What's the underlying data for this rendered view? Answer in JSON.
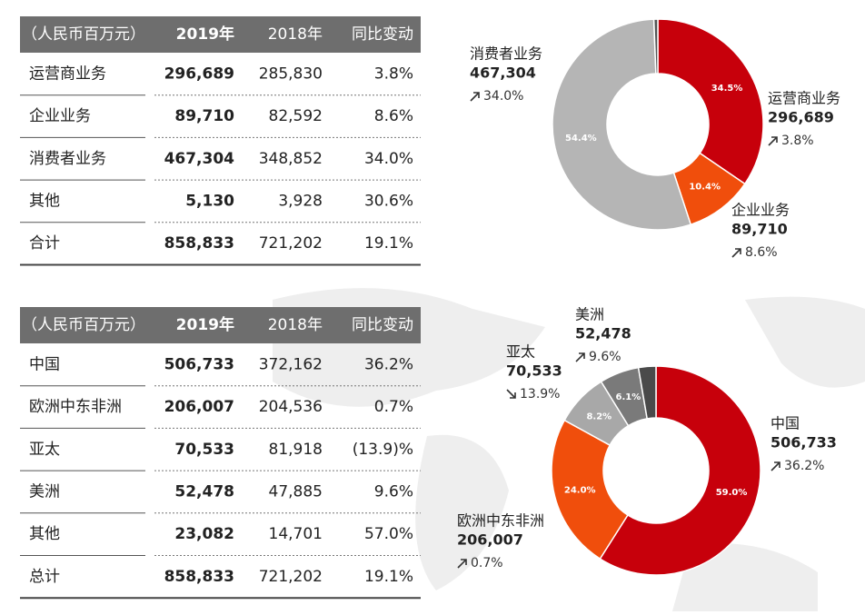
{
  "table1": {
    "header": [
      "（人民币百万元）",
      "2019年",
      "2018年",
      "同比变动"
    ],
    "rows": [
      [
        "运营商业务",
        "296,689",
        "285,830",
        "3.8%"
      ],
      [
        "企业业务",
        "89,710",
        "82,592",
        "8.6%"
      ],
      [
        "消费者业务",
        "467,304",
        "348,852",
        "34.0%"
      ],
      [
        "其他",
        "5,130",
        "3,928",
        "30.6%"
      ],
      [
        "合计",
        "858,833",
        "721,202",
        "19.1%"
      ]
    ]
  },
  "table2": {
    "header": [
      "（人民币百万元）",
      "2019年",
      "2018年",
      "同比变动"
    ],
    "rows": [
      [
        "中国",
        "506,733",
        "372,162",
        "36.2%"
      ],
      [
        "欧洲中东非洲",
        "206,007",
        "204,536",
        "0.7%"
      ],
      [
        "亚太",
        "70,533",
        "81,918",
        "(13.9)%"
      ],
      [
        "美洲",
        "52,478",
        "47,885",
        "9.6%"
      ],
      [
        "其他",
        "23,082",
        "14,701",
        "57.0%"
      ],
      [
        "总计",
        "858,833",
        "721,202",
        "19.1%"
      ]
    ]
  },
  "donut1": {
    "type": "donut",
    "categories": [
      "运营商业务",
      "企业业务",
      "消费者业务",
      null
    ],
    "values": [
      34.5,
      10.4,
      54.4,
      0.6
    ],
    "value_labels": [
      "34.5%",
      "10.4%",
      "54.4%",
      null
    ],
    "amounts": [
      "296,689",
      "89,710",
      "467,304",
      null
    ],
    "changes": [
      "3.8%",
      "8.6%",
      "34.0%",
      null
    ],
    "trends": [
      "up",
      "up",
      "up",
      null
    ],
    "colors": [
      "#c7000b",
      "#f04e0c",
      "#b5b5b5",
      "#555555"
    ]
  },
  "donut2": {
    "type": "donut",
    "categories": [
      "中国",
      "欧洲中东非洲",
      "亚太",
      "美洲",
      null
    ],
    "values": [
      59.0,
      24.0,
      8.2,
      6.1,
      2.7
    ],
    "value_labels": [
      "59.0%",
      "24.0%",
      "8.2%",
      "6.1%",
      null
    ],
    "amounts": [
      "506,733",
      "206,007",
      "70,533",
      "52,478",
      null
    ],
    "changes": [
      "36.2%",
      "0.7%",
      "13.9%",
      "9.6%",
      null
    ],
    "trends": [
      "up",
      "up",
      "down",
      "up",
      null
    ],
    "colors": [
      "#c7000b",
      "#f04e0c",
      "#a8a8a8",
      "#7a7a7a",
      "#4a4a4a"
    ]
  }
}
